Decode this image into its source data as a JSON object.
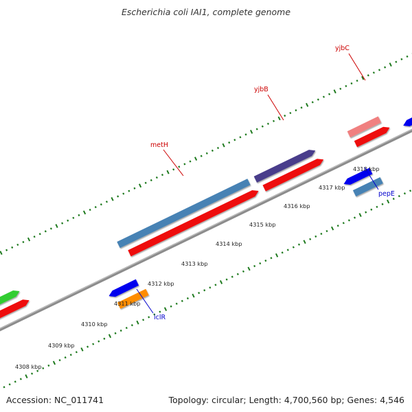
{
  "title": "Escherichia coli IAI1, complete genome",
  "footer": {
    "accession": "Accession: NC_011741",
    "summary": "Topology: circular; Length: 4,700,560 bp; Genes: 4,546"
  },
  "colors": {
    "background": "#ffffff",
    "backbone": "#8c8c8c",
    "tick": "#1e7a1e",
    "cds": "#ee1111",
    "label_red": "#cc0000",
    "label_blue": "#0000cc",
    "gene_steelblue": "#4682b4",
    "gene_darkslate": "#483d8b",
    "gene_pink": "#f08080",
    "gene_blue": "#0000ee",
    "gene_orange": "#ff8c00",
    "gene_green": "#32cd32"
  },
  "axis": {
    "unit": "kbp",
    "labels": [
      "4308 kbp",
      "4309 kbp",
      "4310 kbp",
      "4311 kbp",
      "4312 kbp",
      "4313 kbp",
      "4314 kbp",
      "4315 kbp",
      "4316 kbp",
      "4317 kbp",
      "4318 kbp"
    ]
  },
  "features": [
    {
      "label": "metH",
      "label_color": "#cc0000",
      "fill": "#4682b4",
      "strand": "forward"
    },
    {
      "label": "yjbB",
      "label_color": "#cc0000",
      "fill": "#483d8b",
      "strand": "forward"
    },
    {
      "label": "yjbC",
      "label_color": "#cc0000",
      "fill": "#f08080",
      "strand": "forward"
    },
    {
      "label": "iclR",
      "label_color": "#0000cc",
      "fill": "#ff8c00",
      "strand": "reverse"
    },
    {
      "label": "pepE",
      "label_color": "#0000cc",
      "fill": "#4682b4",
      "strand": "reverse"
    }
  ]
}
